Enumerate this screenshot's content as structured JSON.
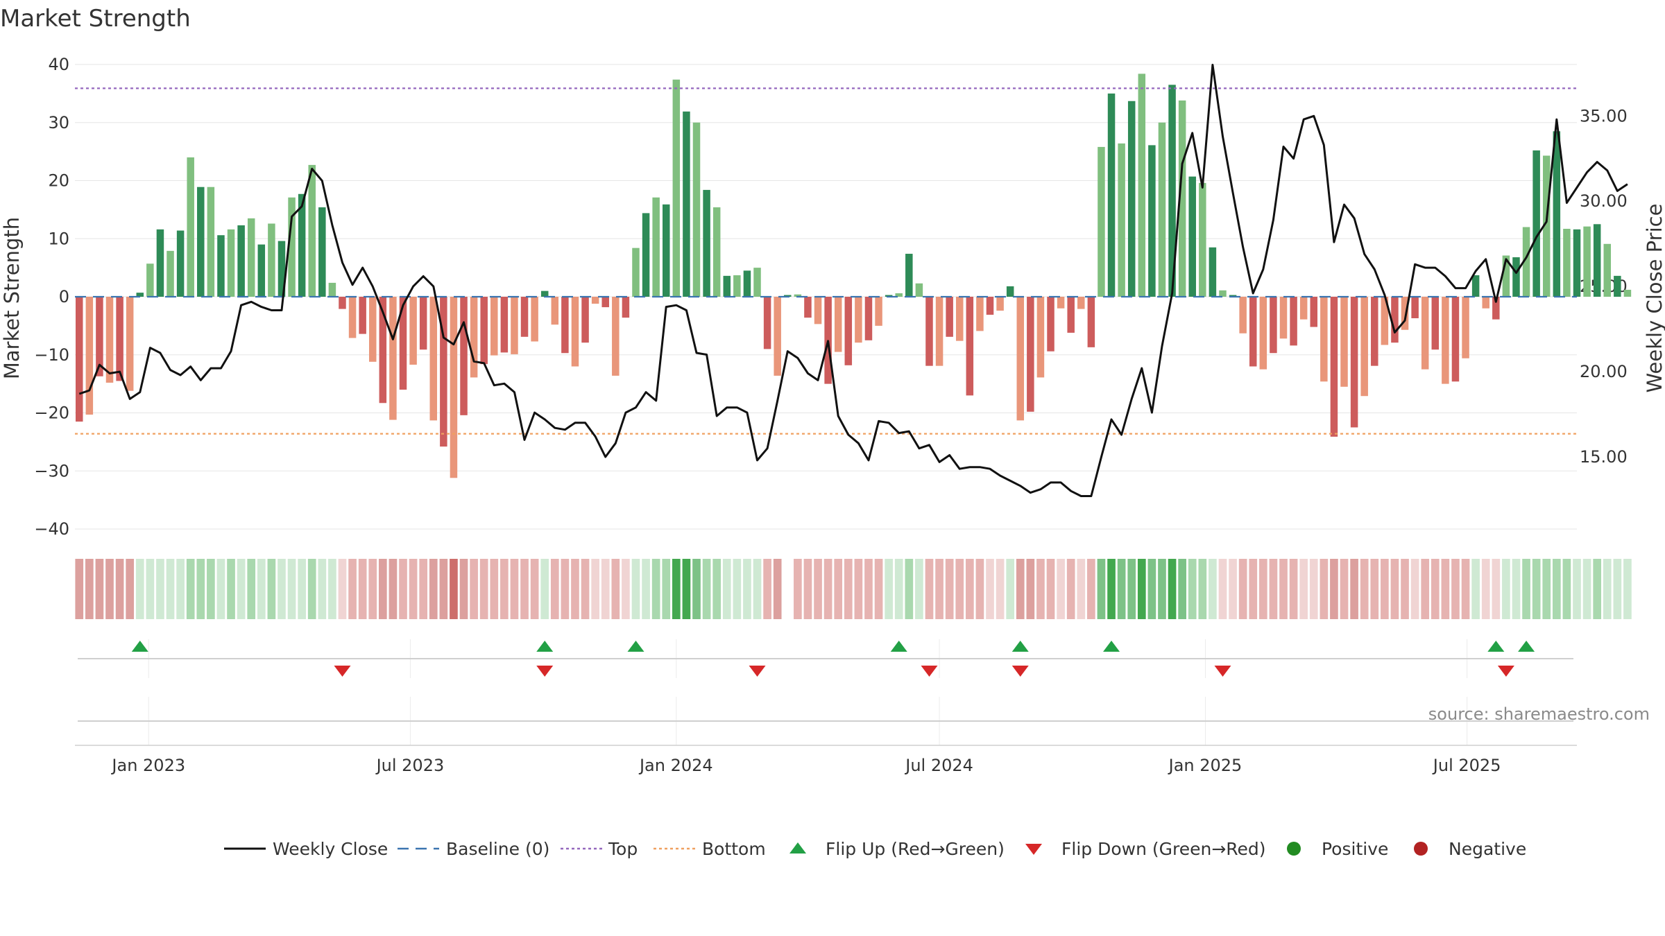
{
  "chart_data": {
    "type": "bar",
    "title": "Market Strength",
    "ylabel": "Market Strength",
    "y2label": "Weekly Close Price",
    "source": "source: sharemaestro.com",
    "ylim": [
      -40,
      40
    ],
    "y2lim": [
      10.77,
      38.02
    ],
    "yticks": [
      40,
      30,
      20,
      10,
      0,
      -10,
      -20,
      -30,
      -40
    ],
    "y2ticks": [
      35,
      30,
      25,
      20,
      15
    ],
    "y2tick_labels": [
      "35.00",
      "30.00",
      "25.00",
      "20.00",
      "15.00"
    ],
    "xlim": [
      "2022-11-11",
      "2025-09-15"
    ],
    "xticks": [
      "2023-01-01",
      "2023-07-01",
      "2024-01-01",
      "2024-07-01",
      "2025-01-01",
      "2025-07-01"
    ],
    "xtick_labels": [
      "Jan 2023",
      "Jul 2023",
      "Jan 2024",
      "Jul 2024",
      "Jan 2025",
      "Jul 2025"
    ],
    "start_date": "2022-11-14",
    "top_line": 35.9,
    "bottom_line": -23.6,
    "values": [
      -21.5,
      -20.3,
      -13.7,
      -14.8,
      -14.5,
      -16.2,
      0.7,
      5.7,
      11.6,
      7.9,
      11.4,
      24.0,
      18.9,
      18.9,
      10.6,
      11.6,
      12.3,
      13.5,
      9.0,
      12.6,
      9.6,
      17.1,
      17.7,
      22.7,
      15.4,
      2.4,
      -2.1,
      -7.1,
      -6.4,
      -11.2,
      -18.3,
      -21.2,
      -16.0,
      -11.7,
      -9.1,
      -21.3,
      -25.8,
      -31.2,
      -20.4,
      -13.9,
      -11.6,
      -10.1,
      -9.6,
      -9.9,
      -6.9,
      -7.7,
      1.0,
      -4.8,
      -9.7,
      -12.0,
      -7.9,
      -1.2,
      -1.8,
      -13.6,
      -3.6,
      8.4,
      14.4,
      17.1,
      15.9,
      37.4,
      31.9,
      30.0,
      18.4,
      15.4,
      3.6,
      3.7,
      4.5,
      5.0,
      -9.0,
      -13.6,
      0.3,
      0.4,
      -3.6,
      -4.7,
      -15.0,
      -9.5,
      -11.8,
      -7.9,
      -7.5,
      -5.0,
      0.3,
      0.6,
      7.4,
      2.3,
      -11.9,
      -11.9,
      -6.9,
      -7.6,
      -17.0,
      -5.9,
      -3.1,
      -2.4,
      1.8,
      -21.3,
      -19.8,
      -13.9,
      -9.4,
      -2.0,
      -6.2,
      -2.1,
      -8.7,
      25.8,
      35.0,
      26.4,
      33.7,
      38.4,
      26.1,
      30.0,
      36.5,
      33.8,
      20.7,
      19.6,
      8.5,
      1.1,
      0.3,
      -6.3,
      -12.0,
      -12.5,
      -9.7,
      -7.2,
      -8.4,
      -3.9,
      -5.2,
      -14.6,
      -24.1,
      -15.5,
      -22.5,
      -17.1,
      -11.9,
      -8.3,
      -7.9,
      -5.7,
      -3.7,
      -12.5,
      -9.1,
      -15.0,
      -14.6,
      -10.6,
      3.7,
      -2.0,
      -3.9,
      7.1,
      6.8,
      12.0,
      25.2,
      24.3,
      28.5,
      11.7,
      11.6,
      12.1,
      12.5,
      9.1,
      3.6,
      1.2
    ],
    "weekly_close": [
      18.7,
      18.9,
      20.4,
      19.9,
      20.0,
      18.4,
      18.8,
      21.4,
      21.1,
      20.1,
      19.8,
      20.3,
      19.5,
      20.2,
      20.2,
      21.2,
      23.9,
      24.1,
      23.8,
      23.6,
      23.6,
      29.1,
      29.7,
      31.9,
      31.2,
      28.6,
      26.4,
      25.1,
      26.1,
      25.0,
      23.5,
      21.9,
      23.9,
      25.0,
      25.6,
      25.0,
      22.0,
      21.6,
      22.9,
      20.6,
      20.5,
      19.2,
      19.3,
      18.8,
      16.0,
      17.6,
      17.2,
      16.7,
      16.6,
      17.0,
      17.0,
      16.2,
      15.0,
      15.8,
      17.6,
      17.9,
      18.8,
      18.3,
      23.8,
      23.9,
      23.6,
      21.1,
      21.0,
      17.4,
      17.9,
      17.9,
      17.6,
      14.8,
      15.5,
      18.3,
      21.2,
      20.8,
      19.9,
      19.5,
      21.8,
      17.4,
      16.3,
      15.8,
      14.8,
      17.1,
      17.0,
      16.4,
      16.5,
      15.5,
      15.7,
      14.7,
      15.1,
      14.3,
      14.4,
      14.4,
      14.3,
      13.9,
      13.6,
      13.3,
      12.9,
      13.1,
      13.5,
      13.5,
      13.0,
      12.7,
      12.7,
      15.0,
      17.2,
      16.3,
      18.4,
      20.2,
      17.6,
      21.5,
      24.6,
      32.2,
      34.0,
      30.8,
      38.0,
      33.8,
      30.5,
      27.3,
      24.6,
      26.0,
      28.9,
      33.2,
      32.5,
      34.8,
      35.0,
      33.3,
      27.6,
      29.8,
      29.0,
      26.9,
      26.0,
      24.5,
      22.3,
      23.0,
      26.3,
      26.1,
      26.1,
      25.6,
      24.9,
      24.9,
      25.9,
      26.6,
      24.1,
      26.6,
      25.8,
      26.7,
      27.9,
      28.8,
      34.8,
      29.9,
      30.8,
      31.7,
      32.3,
      31.8,
      30.6,
      31.0
    ],
    "color_levels": [
      -3,
      -3,
      -3,
      -3,
      -3,
      -3,
      1,
      1,
      1,
      1,
      1,
      2,
      2,
      2,
      1,
      2,
      1,
      2,
      1,
      2,
      1,
      1,
      1,
      2,
      1,
      1,
      -1,
      -2,
      -2,
      -2,
      -3,
      -3,
      -2,
      -2,
      -2,
      -3,
      -3,
      -4,
      -3,
      -2,
      -2,
      -2,
      -2,
      -2,
      -2,
      -2,
      1,
      -2,
      -2,
      -2,
      -2,
      -1,
      -1,
      -2,
      -1,
      1,
      1,
      2,
      2,
      4,
      4,
      3,
      2,
      2,
      1,
      1,
      1,
      1,
      -2,
      -3,
      0,
      -2,
      -2,
      -2,
      -2,
      -2,
      -2,
      -2,
      -2,
      -2,
      1,
      1,
      2,
      1,
      -2,
      -2,
      -2,
      -2,
      -2,
      -2,
      -1,
      -1,
      1,
      -3,
      -3,
      -2,
      -2,
      -1,
      -2,
      -1,
      -2,
      3,
      4,
      3,
      3,
      4,
      3,
      3,
      4,
      3,
      2,
      2,
      1,
      -1,
      -1,
      -2,
      -2,
      -2,
      -2,
      -2,
      -2,
      -1,
      -1,
      -2,
      -3,
      -2,
      -3,
      -2,
      -2,
      -2,
      -2,
      -2,
      -1,
      -2,
      -2,
      -2,
      -2,
      -2,
      1,
      -1,
      -1,
      1,
      1,
      2,
      2,
      2,
      2,
      2,
      1,
      1,
      2,
      1,
      1,
      1
    ],
    "flip_up_weeks": [
      6,
      46,
      55,
      81,
      93,
      102,
      140,
      143
    ],
    "flip_down_weeks": [
      26,
      46,
      67,
      84,
      93,
      113,
      141
    ],
    "legend": [
      "Weekly Close",
      "Baseline (0)",
      "Top",
      "Bottom",
      "Flip Up (Red→Green)",
      "Flip Down (Green→Red)",
      "Positive",
      "Negative"
    ],
    "colors": {
      "pos_strong": "#2e8b57",
      "pos_light": "#80bf7f",
      "neg_strong": "#cd5c5c",
      "neg_light": "#e9967a",
      "baseline": "#3a74b0",
      "top": "#9467bd",
      "bottom": "#f0a060",
      "close": "#111111",
      "flip_up": "#22a045",
      "flip_down": "#d62728",
      "positive_marker": "#228b22",
      "negative_marker": "#b22222",
      "heat_pos": [
        "#cfe9d3",
        "#a9d8ae",
        "#7dc287",
        "#43a84f"
      ],
      "heat_neg": [
        "#f0d4d3",
        "#e6b3b1",
        "#dca09e",
        "#cd6e6b"
      ]
    }
  }
}
